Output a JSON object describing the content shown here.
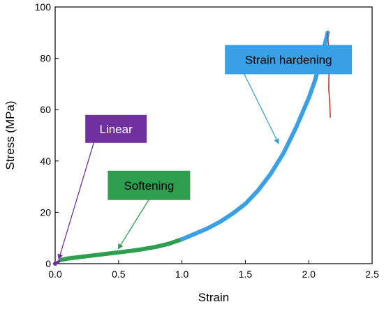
{
  "chart_data": {
    "type": "line",
    "title": "",
    "xlabel": "Strain",
    "ylabel": "Stress (MPa)",
    "xlim": [
      0,
      2.5
    ],
    "ylim": [
      0,
      100
    ],
    "x_ticks": [
      0.0,
      0.5,
      1.0,
      1.5,
      2.0,
      2.5
    ],
    "x_tick_labels": [
      "0.0",
      "0.5",
      "1.0",
      "1.5",
      "2.0",
      "2.5"
    ],
    "y_ticks": [
      0,
      20,
      40,
      60,
      80,
      100
    ],
    "y_tick_labels": [
      "0",
      "20",
      "40",
      "60",
      "80",
      "100"
    ],
    "grid": false,
    "legend": false,
    "series": [
      {
        "color": "#7030a0",
        "points": [
          [
            0.0,
            0.0
          ],
          [
            0.02,
            0.6
          ],
          [
            0.05,
            1.5
          ]
        ]
      },
      {
        "color": "#2e9e4f",
        "points": [
          [
            0.05,
            1.5
          ],
          [
            0.1,
            2.0
          ],
          [
            0.2,
            2.6
          ],
          [
            0.3,
            3.2
          ],
          [
            0.4,
            3.8
          ],
          [
            0.5,
            4.4
          ],
          [
            0.6,
            5.0
          ],
          [
            0.7,
            5.7
          ],
          [
            0.8,
            6.6
          ],
          [
            0.9,
            7.8
          ],
          [
            1.0,
            9.5
          ]
        ]
      },
      {
        "color": "#3aa0e6",
        "points": [
          [
            1.0,
            9.5
          ],
          [
            1.1,
            11.6
          ],
          [
            1.2,
            13.7
          ],
          [
            1.3,
            16.3
          ],
          [
            1.4,
            19.5
          ],
          [
            1.5,
            23.3
          ],
          [
            1.6,
            28.5
          ],
          [
            1.7,
            35.0
          ],
          [
            1.8,
            43.0
          ],
          [
            1.9,
            53.0
          ],
          [
            2.0,
            64.5
          ],
          [
            2.05,
            71.5
          ],
          [
            2.1,
            80.5
          ],
          [
            2.14,
            88.0
          ],
          [
            2.15,
            90.0
          ]
        ]
      },
      {
        "color": "#c0392b",
        "points": [
          [
            2.15,
            90.0
          ],
          [
            2.155,
            85.0
          ],
          [
            2.16,
            78.0
          ],
          [
            2.158,
            68.0
          ],
          [
            2.165,
            63.0
          ],
          [
            2.17,
            57.0
          ]
        ]
      }
    ],
    "annotations": [
      {
        "text": "Linear",
        "box_color": "#7030a0",
        "text_color": "#ffffff",
        "anchor": [
          0.48,
          52.5
        ],
        "line_from": [
          0.31,
          48.0
        ],
        "arrow_to": [
          0.03,
          2.0
        ],
        "arrow_color": "#7030a0"
      },
      {
        "text": "Softening",
        "box_color": "#2e9e4f",
        "text_color": "#000000",
        "anchor": [
          0.74,
          30.5
        ],
        "line_from": [
          0.74,
          25.0
        ],
        "arrow_to": [
          0.5,
          6.0
        ],
        "arrow_color": "#2e9e4f"
      },
      {
        "text": "Strain hardening",
        "box_color": "#3aa0e6",
        "text_color": "#000000",
        "anchor": [
          1.84,
          79.5
        ],
        "line_from": [
          1.49,
          74.0
        ],
        "arrow_to": [
          1.76,
          47.0
        ],
        "arrow_color": "#3aa0e6"
      }
    ]
  }
}
